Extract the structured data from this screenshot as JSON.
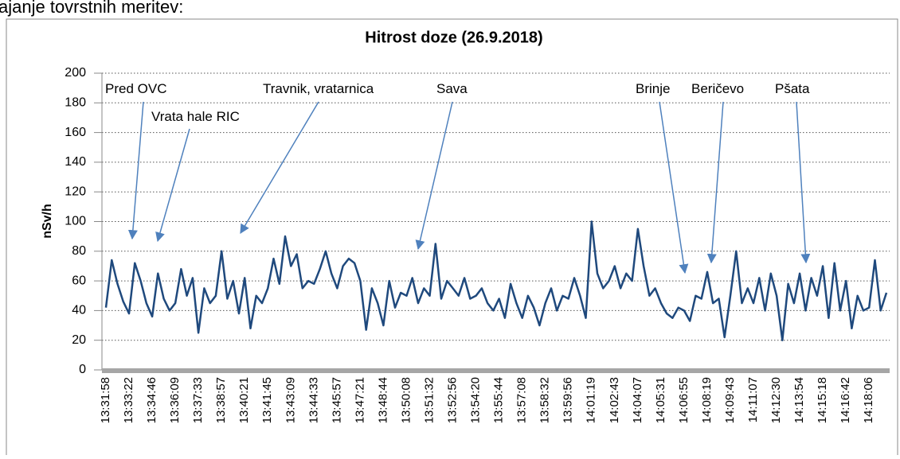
{
  "page_text": "ajanje tovrstnih meritev:",
  "chart_data": {
    "type": "line",
    "title": "Hitrost doze (26.9.2018)",
    "y_label": "nSv/h",
    "color": "#1f497d",
    "grid": true,
    "ylim": [
      0,
      200
    ],
    "yticks": [
      0,
      20,
      40,
      60,
      80,
      100,
      120,
      140,
      160,
      180,
      200
    ],
    "annotations": [
      "Pred OVC",
      "Vrata hale RIC",
      "Travnik, vratarnica",
      "Sava",
      "Brinje",
      "Beričevo",
      "Pšata"
    ],
    "categories": [
      "13:31:58",
      null,
      null,
      null,
      "13:33:22",
      null,
      null,
      null,
      "13:34:46",
      null,
      null,
      null,
      "13:36:09",
      null,
      null,
      null,
      "13:37:33",
      null,
      null,
      null,
      "13:38:57",
      null,
      null,
      null,
      "13:40:21",
      null,
      null,
      null,
      "13:41:45",
      null,
      null,
      null,
      "13:43:09",
      null,
      null,
      null,
      "13:44:33",
      null,
      null,
      null,
      "13:45:57",
      null,
      null,
      null,
      "13:47:21",
      null,
      null,
      null,
      "13:48:44",
      null,
      null,
      null,
      "13:50:08",
      null,
      null,
      null,
      "13:51:32",
      null,
      null,
      null,
      "13:52:56",
      null,
      null,
      null,
      "13:54:20",
      null,
      null,
      null,
      "13:55:44",
      null,
      null,
      null,
      "13:57:08",
      null,
      null,
      null,
      "13:58:32",
      null,
      null,
      null,
      "13:59:56",
      null,
      null,
      null,
      "14:01:19",
      null,
      null,
      null,
      "14:02:43",
      null,
      null,
      null,
      "14:04:07",
      null,
      null,
      null,
      "14:05:31",
      null,
      null,
      null,
      "14:06:55",
      null,
      null,
      null,
      "14:08:19",
      null,
      null,
      null,
      "14:09:43",
      null,
      null,
      null,
      "14:11:07",
      null,
      null,
      null,
      "14:12:30",
      null,
      null,
      null,
      "14:13:54",
      null,
      null,
      null,
      "14:15:18",
      null,
      null,
      null,
      "14:16:42",
      null,
      null,
      null,
      "14:18:06",
      null,
      null,
      null
    ],
    "values": [
      42,
      74,
      58,
      46,
      38,
      72,
      60,
      45,
      36,
      65,
      48,
      40,
      45,
      68,
      50,
      62,
      25,
      55,
      45,
      50,
      80,
      48,
      60,
      38,
      62,
      28,
      50,
      45,
      55,
      75,
      58,
      90,
      70,
      78,
      55,
      60,
      58,
      68,
      80,
      65,
      55,
      70,
      75,
      72,
      60,
      27,
      55,
      45,
      30,
      60,
      42,
      52,
      50,
      62,
      45,
      55,
      50,
      85,
      48,
      60,
      55,
      50,
      62,
      48,
      50,
      55,
      45,
      40,
      48,
      35,
      58,
      45,
      35,
      50,
      42,
      30,
      45,
      55,
      40,
      50,
      48,
      62,
      50,
      35,
      100,
      65,
      55,
      60,
      70,
      55,
      65,
      60,
      95,
      70,
      50,
      55,
      45,
      38,
      35,
      42,
      40,
      33,
      50,
      48,
      66,
      45,
      48,
      22,
      50,
      80,
      45,
      55,
      45,
      62,
      40,
      65,
      50,
      20,
      58,
      45,
      65,
      40,
      62,
      50,
      70,
      35,
      72,
      40,
      60,
      28,
      50,
      40,
      42,
      74,
      40,
      52
    ]
  }
}
